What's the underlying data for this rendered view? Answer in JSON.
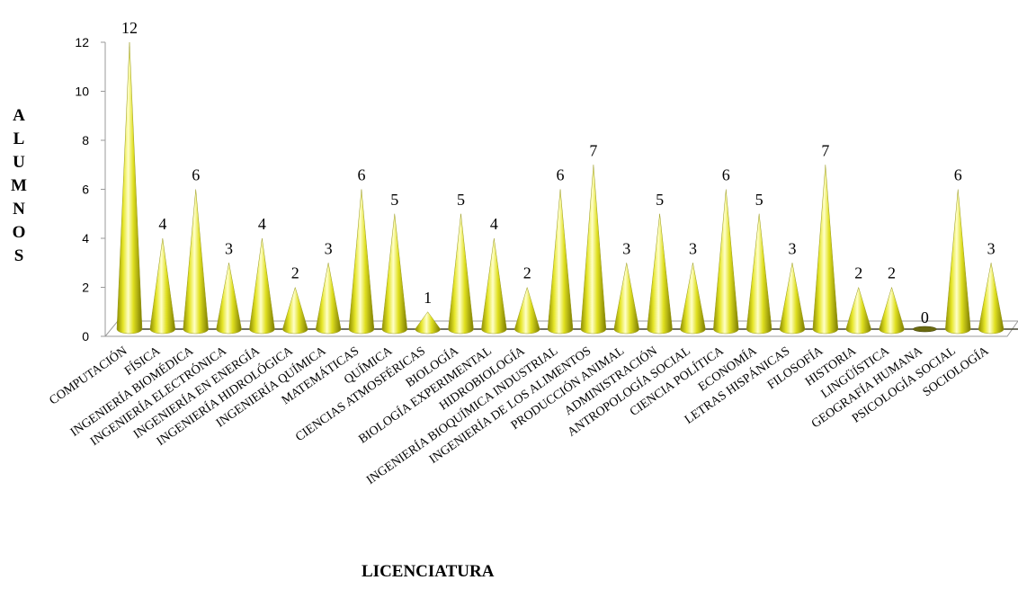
{
  "chart_data": {
    "type": "bar",
    "style": "3d-cone",
    "xlabel": "LICENCIATURA",
    "ylabel": "ALUMNOS",
    "ylim": [
      0,
      12
    ],
    "yticks": [
      "0",
      "2",
      "4",
      "6",
      "8",
      "10",
      "12"
    ],
    "grid": false,
    "legend": "none",
    "colors": {
      "cone_base": "#e0e020",
      "cone_light": "#ffffc0",
      "cone_dark": "#7a7a00",
      "axis": "#9a9a9a",
      "floor_line": "#4a4a30"
    },
    "categories": [
      "COMPUTACIÓN",
      "FÍSICA",
      "INGENIERÍA BIOMÉDICA",
      "INGENIERÍA ELECTRÓNICA",
      "INGENIERÍA EN ENERGÍA",
      "INGENIERÍA HIDROLÓGICA",
      "INGENIERÍA QUÍMICA",
      "MATEMÁTICAS",
      "QUÍMICA",
      "CIENCIAS ATMOSFÉRICAS",
      "BIOLOGÍA",
      "BIOLOGÍA EXPERIMENTAL",
      "HIDROBIOLOGÍA",
      "INGENIERÍA BIOQUÍMICA INDUSTRIAL",
      "INGENIERÍA DE LOS ALIMENTOS",
      "PRODUCCIÓN ANIMAL",
      "ADMINISTRACIÓN",
      "ANTROPOLOGÍA SOCIAL",
      "CIENCIA POLÍTICA",
      "ECONOMÍA",
      "LETRAS HISPÁNICAS",
      "FILOSOFÍA",
      "HISTORIA",
      "LINGÜÍSTICA",
      "GEOGRAFÍA HUMANA",
      "PSICOLOGÍA SOCIAL",
      "SOCIOLOGÍA"
    ],
    "values": [
      12,
      4,
      6,
      3,
      4,
      2,
      3,
      6,
      5,
      1,
      5,
      4,
      2,
      6,
      7,
      3,
      5,
      3,
      6,
      5,
      3,
      7,
      2,
      2,
      0,
      6,
      3
    ]
  }
}
